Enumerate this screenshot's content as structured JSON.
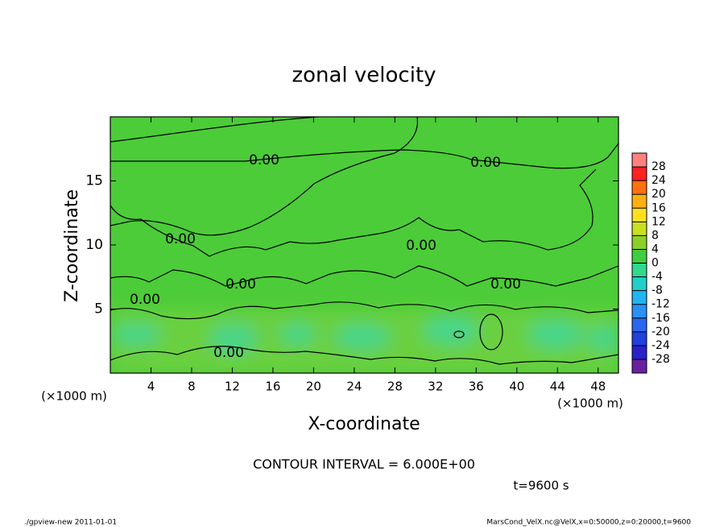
{
  "chart_data": {
    "type": "contour",
    "title": "zonal velocity",
    "x_label": "X-coordinate",
    "y_label": "Z-coordinate",
    "x_unit_label": "(×1000 m)",
    "y_unit_label": "(×1000 m)",
    "xlim": [
      0,
      50
    ],
    "xticks": [
      4,
      8,
      12,
      16,
      20,
      24,
      28,
      32,
      36,
      40,
      44,
      48
    ],
    "ylim": [
      0,
      20
    ],
    "yticks": [
      5,
      10,
      15
    ],
    "grid": false,
    "contour_level": {
      "value": 0,
      "label": "0.00"
    },
    "contour_interval_text": "CONTOUR INTERVAL = 6.000E+00",
    "time_text": "t=9600 s",
    "colorbar": {
      "clim": [
        -32,
        32
      ],
      "ticks": [
        28,
        24,
        20,
        16,
        12,
        8,
        4,
        0,
        -4,
        -8,
        -12,
        -16,
        -20,
        -24,
        -28
      ],
      "colors": [
        "#6a1fa0",
        "#2a20c8",
        "#2040e0",
        "#2a66f0",
        "#2a90f5",
        "#20b4f0",
        "#20d0c8",
        "#30d890",
        "#40cc40",
        "#8ad028",
        "#c8e020",
        "#ffe020",
        "#ffb010",
        "#ff7010",
        "#ff2020",
        "#ff8080"
      ]
    },
    "footer_left": "./gpview-new   2011-01-01",
    "footer_right": "MarsCond_VelX.nc@VelX,x=0:50000,z=0:20000,t=9600"
  }
}
